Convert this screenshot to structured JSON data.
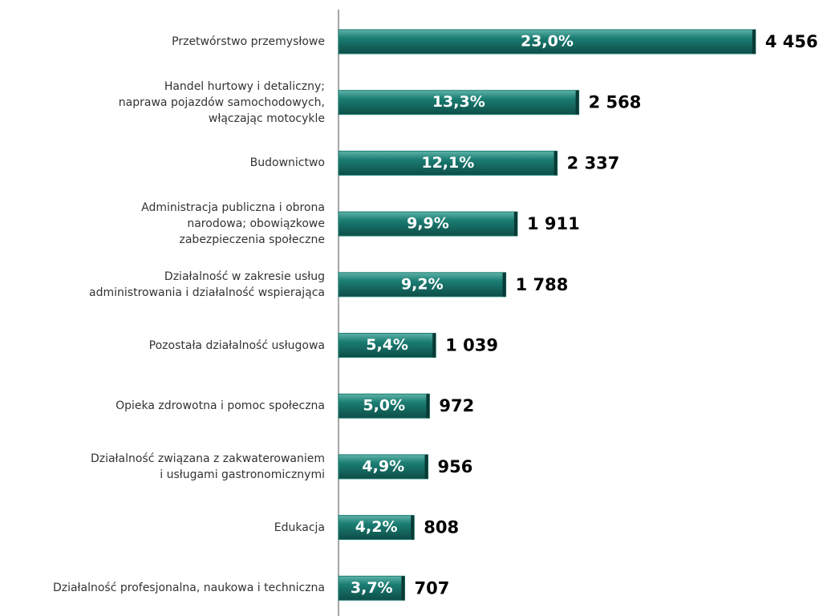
{
  "chart_data": {
    "type": "bar",
    "orientation": "horizontal",
    "categories": [
      "Przetwórstwo przemysłowe",
      "Handel hurtowy i detaliczny;\nnaprawa pojazdów samochodowych,\nwłączając motocykle",
      "Budownictwo",
      "Administracja publiczna i obrona\nnarodowa; obowiązkowe\nzabezpieczenia społeczne",
      "Działalność w zakresie usług\nadministrowania i działalność wspierająca",
      "Pozostała działalność usługowa",
      "Opieka zdrowotna i pomoc społeczna",
      "Działalność związana z zakwaterowaniem\ni usługami gastronomicznymi",
      "Edukacja",
      "Działalność profesjonalna, naukowa i techniczna"
    ],
    "values": [
      4456,
      2568,
      2337,
      1911,
      1788,
      1039,
      972,
      956,
      808,
      707
    ],
    "value_labels": [
      "4 456",
      "2 568",
      "2 337",
      "1 911",
      "1 788",
      "1 039",
      "972",
      "956",
      "808",
      "707"
    ],
    "shares": [
      23.0,
      13.3,
      12.1,
      9.9,
      9.2,
      5.4,
      5.0,
      4.9,
      4.2,
      3.7
    ],
    "share_labels": [
      "23,0%",
      "13,3%",
      "12,1%",
      "9,9%",
      "9,2%",
      "5,4%",
      "5,0%",
      "4,9%",
      "4,2%",
      "3,7%"
    ],
    "color": "#1b7d73",
    "xlim": [
      0,
      4500
    ]
  }
}
